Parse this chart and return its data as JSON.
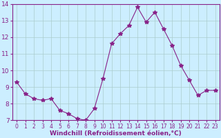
{
  "x": [
    0,
    1,
    2,
    3,
    4,
    5,
    6,
    7,
    8,
    9,
    10,
    11,
    12,
    13,
    14,
    15,
    16,
    17,
    18,
    19,
    20,
    21,
    22,
    23
  ],
  "y": [
    9.3,
    8.6,
    8.3,
    8.2,
    8.3,
    7.6,
    7.4,
    7.1,
    7.0,
    7.7,
    9.5,
    11.6,
    12.2,
    12.7,
    13.8,
    12.9,
    13.5,
    12.5,
    11.5,
    10.3,
    9.4,
    8.5,
    8.8,
    8.8
  ],
  "xlabel": "Windchill (Refroidissement éolien,°C)",
  "ylim": [
    7,
    14
  ],
  "xlim": [
    -0.5,
    23.5
  ],
  "yticks": [
    7,
    8,
    9,
    10,
    11,
    12,
    13,
    14
  ],
  "xticks": [
    0,
    1,
    2,
    3,
    4,
    5,
    6,
    7,
    8,
    9,
    10,
    11,
    12,
    13,
    14,
    15,
    16,
    17,
    18,
    19,
    20,
    21,
    22,
    23
  ],
  "line_color": "#882288",
  "marker": "*",
  "marker_size": 4,
  "bg_color": "#cceeff",
  "grid_color": "#aacccc",
  "label_color": "#882288",
  "tick_color": "#882288",
  "spine_color": "#882288",
  "xlabel_fontsize": 6.5,
  "ytick_fontsize": 6.5,
  "xtick_fontsize": 5.5
}
